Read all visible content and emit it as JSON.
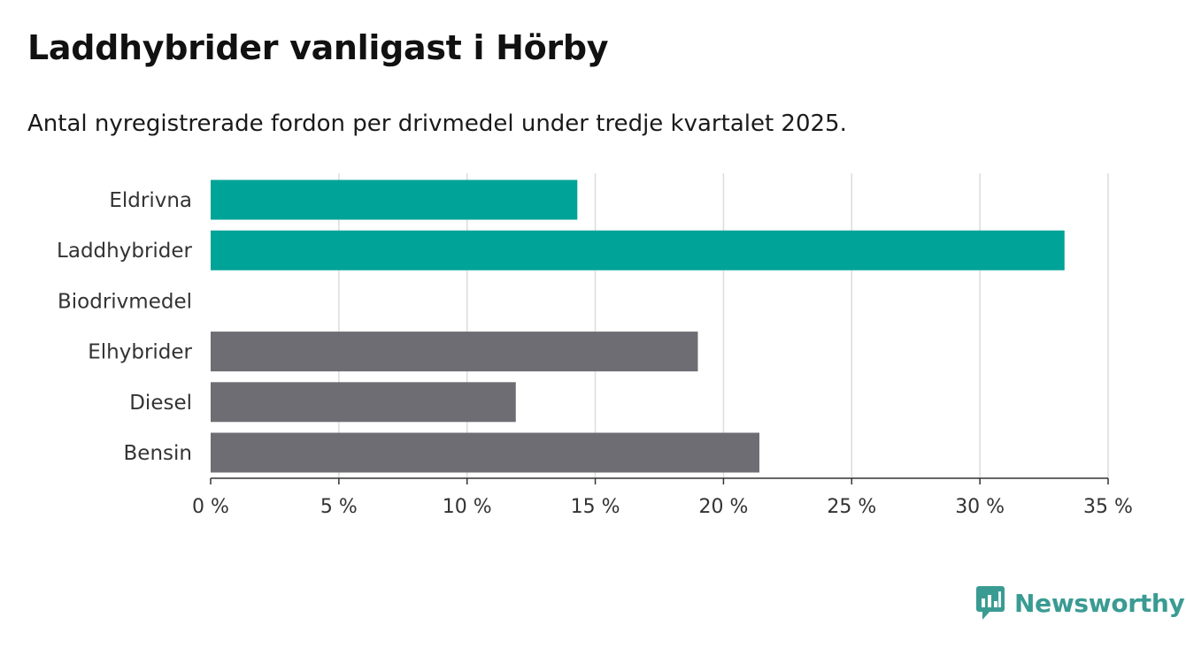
{
  "header": {
    "title": "Laddhybrider vanligast i Hörby",
    "subtitle": "Antal nyregistrerade fordon per drivmedel under tredje kvartalet 2025."
  },
  "branding": {
    "logo_text": "Newsworthy",
    "logo_icon": "chart-bubble-icon",
    "color": "#3a9b93"
  },
  "chart_data": {
    "type": "bar",
    "orientation": "horizontal",
    "categories": [
      "Eldrivna",
      "Laddhybrider",
      "Biodrivmedel",
      "Elhybrider",
      "Diesel",
      "Bensin"
    ],
    "values": [
      14.3,
      33.3,
      0,
      19.0,
      11.9,
      21.4
    ],
    "colors": [
      "#00a398",
      "#00a398",
      "#00a398",
      "#6e6d73",
      "#6e6d73",
      "#6e6d73"
    ],
    "xlim": [
      0,
      35
    ],
    "xticks": [
      0,
      5,
      10,
      15,
      20,
      25,
      30,
      35
    ],
    "xtick_labels": [
      "0 %",
      "5 %",
      "10 %",
      "15 %",
      "20 %",
      "25 %",
      "30 %",
      "35 %"
    ],
    "grid": "vertical"
  }
}
